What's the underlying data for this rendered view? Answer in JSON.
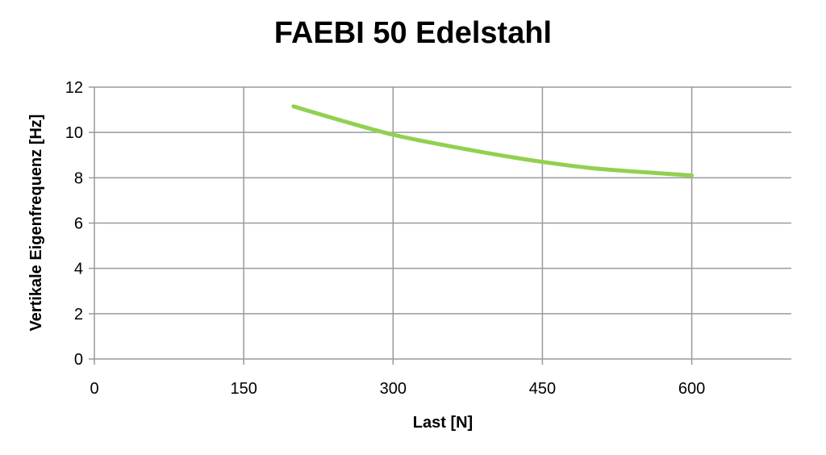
{
  "chart_data": {
    "type": "line",
    "title": "FAEBI 50 Edelstahl",
    "xlabel": "Last [N]",
    "ylabel": "Vertikale Eigenfrequenz [Hz]",
    "xlim": [
      0,
      700
    ],
    "ylim": [
      0,
      12
    ],
    "xticks": [
      0,
      150,
      300,
      450,
      600
    ],
    "yticks": [
      0,
      2,
      4,
      6,
      8,
      10,
      12
    ],
    "grid": true,
    "series": [
      {
        "color": "#92d050",
        "x": [
          200,
          250,
          300,
          350,
          400,
          450,
          500,
          550,
          600
        ],
        "y": [
          11.15,
          10.5,
          9.9,
          9.45,
          9.05,
          8.7,
          8.42,
          8.25,
          8.1
        ]
      }
    ]
  }
}
